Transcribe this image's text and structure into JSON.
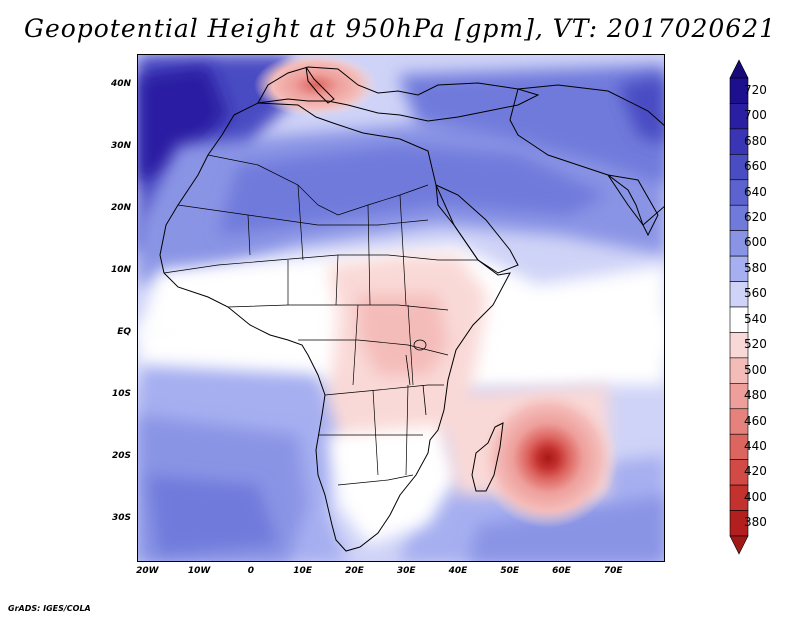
{
  "title": "Geopotential Height at 950hPa [gpm], VT: 2017020621",
  "credit": "GrADS: IGES/COLA",
  "map": {
    "projection": "lat-lon",
    "lon_range": [
      -22,
      80
    ],
    "lat_range": [
      -37,
      45
    ],
    "lat_ticks": [
      {
        "value": 40,
        "label": "40N"
      },
      {
        "value": 30,
        "label": "30N"
      },
      {
        "value": 20,
        "label": "20N"
      },
      {
        "value": 10,
        "label": "10N"
      },
      {
        "value": 0,
        "label": "EQ"
      },
      {
        "value": -10,
        "label": "10S"
      },
      {
        "value": -20,
        "label": "20S"
      },
      {
        "value": -30,
        "label": "30S"
      }
    ],
    "lon_ticks": [
      {
        "value": -20,
        "label": "20W"
      },
      {
        "value": -10,
        "label": "10W"
      },
      {
        "value": 0,
        "label": "0"
      },
      {
        "value": 10,
        "label": "10E"
      },
      {
        "value": 20,
        "label": "20E"
      },
      {
        "value": 30,
        "label": "30E"
      },
      {
        "value": 40,
        "label": "40E"
      },
      {
        "value": 50,
        "label": "50E"
      },
      {
        "value": 60,
        "label": "60E"
      },
      {
        "value": 70,
        "label": "70E"
      }
    ],
    "features": {
      "cyclone_low_center": {
        "lon": 57.5,
        "lat": -20.2,
        "min_height": 380
      },
      "mediterranean_low_center": {
        "lon": 13,
        "lat": 39.5,
        "min_height": 500
      }
    }
  },
  "colorbar": {
    "unit": "gpm",
    "levels": [
      {
        "value": "720",
        "color": "#1d0f8e"
      },
      {
        "value": "700",
        "color": "#2a1fa3"
      },
      {
        "value": "680",
        "color": "#3a35b4"
      },
      {
        "value": "660",
        "color": "#4a4cc2"
      },
      {
        "value": "640",
        "color": "#5c63cf"
      },
      {
        "value": "620",
        "color": "#707adb"
      },
      {
        "value": "600",
        "color": "#8a94e5"
      },
      {
        "value": "580",
        "color": "#a6aff0"
      },
      {
        "value": "560",
        "color": "#cfd3f7"
      },
      {
        "value": "540",
        "color": "#ffffff"
      },
      {
        "value": "520",
        "color": "#f9d9d7"
      },
      {
        "value": "500",
        "color": "#f4bcb9"
      },
      {
        "value": "480",
        "color": "#ee9f9b"
      },
      {
        "value": "460",
        "color": "#e6827d"
      },
      {
        "value": "440",
        "color": "#dd6560"
      },
      {
        "value": "420",
        "color": "#d24a45"
      },
      {
        "value": "400",
        "color": "#c4322f"
      },
      {
        "value": "380",
        "color": "#b31f1f"
      }
    ],
    "top_arrow_color": "#170b7a",
    "bottom_arrow_color": "#a01818"
  }
}
